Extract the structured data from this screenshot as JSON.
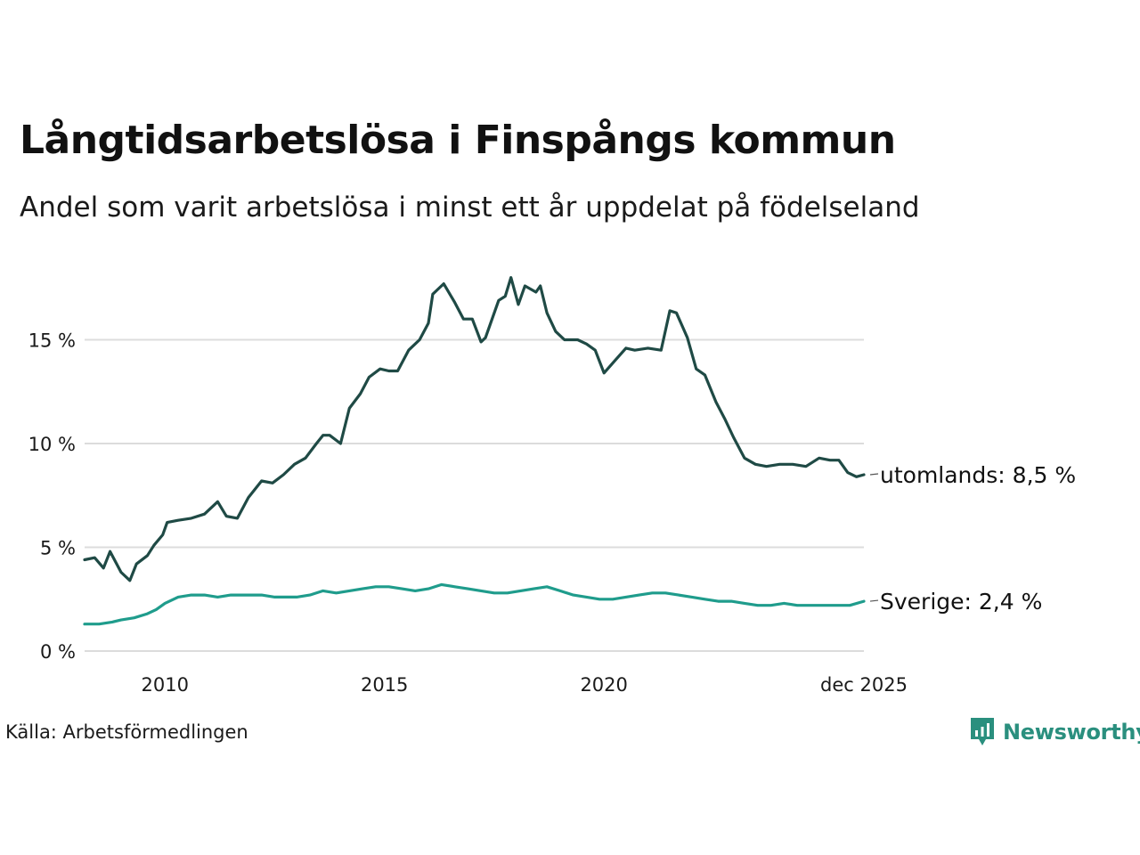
{
  "title": "Långtidsarbetslösa i Finspångs kommun",
  "subtitle": "Andel som varit arbetslösa i minst ett år uppdelat på födelseland",
  "source": "Källa: Arbetsförmedlingen",
  "brand": "Newsworthy",
  "colors": {
    "utomlands": "#1f4a45",
    "sverige": "#1f9c8c",
    "grid": "#dcdcdc",
    "brand": "#2a8f7e"
  },
  "chart_data": {
    "type": "line",
    "title": "Långtidsarbetslösa i Finspångs kommun",
    "xlabel": "",
    "ylabel": "",
    "xlim": [
      2008.17,
      2025.92
    ],
    "ylim": [
      0,
      18.5
    ],
    "grid": true,
    "x_ticks": [
      {
        "value": 2010,
        "label": "2010"
      },
      {
        "value": 2015,
        "label": "2015"
      },
      {
        "value": 2020,
        "label": "2020"
      },
      {
        "value": 2025.92,
        "label": "dec 2025"
      }
    ],
    "y_ticks": [
      {
        "value": 0,
        "label": "0 %"
      },
      {
        "value": 5,
        "label": "5 %"
      },
      {
        "value": 10,
        "label": "10 %"
      },
      {
        "value": 15,
        "label": "15 %"
      }
    ],
    "series": [
      {
        "name": "utomlands",
        "end_label": "utomlands: 8,5 %",
        "x": [
          2008.17,
          2008.4,
          2008.6,
          2008.75,
          2009.0,
          2009.2,
          2009.35,
          2009.6,
          2009.75,
          2009.95,
          2010.05,
          2010.3,
          2010.6,
          2010.9,
          2011.2,
          2011.4,
          2011.65,
          2011.9,
          2012.2,
          2012.45,
          2012.7,
          2012.95,
          2013.2,
          2013.45,
          2013.6,
          2013.75,
          2014.0,
          2014.2,
          2014.45,
          2014.65,
          2014.9,
          2015.1,
          2015.3,
          2015.55,
          2015.8,
          2016.0,
          2016.1,
          2016.2,
          2016.35,
          2016.6,
          2016.8,
          2017.0,
          2017.2,
          2017.3,
          2017.6,
          2017.75,
          2017.88,
          2018.05,
          2018.2,
          2018.45,
          2018.55,
          2018.7,
          2018.9,
          2019.1,
          2019.4,
          2019.6,
          2019.8,
          2020.0,
          2020.25,
          2020.5,
          2020.7,
          2021.0,
          2021.3,
          2021.5,
          2021.65,
          2021.9,
          2022.1,
          2022.3,
          2022.55,
          2022.75,
          2022.95,
          2023.2,
          2023.45,
          2023.7,
          2024.0,
          2024.3,
          2024.6,
          2024.9,
          2025.15,
          2025.35,
          2025.55,
          2025.75,
          2025.92
        ],
        "values": [
          4.4,
          4.5,
          4.0,
          4.8,
          3.8,
          3.4,
          4.2,
          4.6,
          5.1,
          5.6,
          6.2,
          6.3,
          6.4,
          6.6,
          7.2,
          6.5,
          6.4,
          7.4,
          8.2,
          8.1,
          8.5,
          9.0,
          9.3,
          10.0,
          10.4,
          10.4,
          10.0,
          11.7,
          12.4,
          13.2,
          13.6,
          13.5,
          13.5,
          14.5,
          15.0,
          15.8,
          17.2,
          17.4,
          17.7,
          16.8,
          16.0,
          16.0,
          14.9,
          15.1,
          16.9,
          17.1,
          18.0,
          16.7,
          17.6,
          17.3,
          17.6,
          16.3,
          15.4,
          15.0,
          15.0,
          14.8,
          14.5,
          13.4,
          14.0,
          14.6,
          14.5,
          14.6,
          14.5,
          16.4,
          16.3,
          15.1,
          13.6,
          13.3,
          12.0,
          11.2,
          10.3,
          9.3,
          9.0,
          8.9,
          9.0,
          9.0,
          8.9,
          9.3,
          9.2,
          9.2,
          8.6,
          8.4,
          8.5
        ]
      },
      {
        "name": "Sverige",
        "end_label": "Sverige: 2,4 %",
        "x": [
          2008.17,
          2008.5,
          2008.8,
          2009.0,
          2009.3,
          2009.6,
          2009.8,
          2010.0,
          2010.3,
          2010.6,
          2010.9,
          2011.2,
          2011.5,
          2011.8,
          2012.2,
          2012.5,
          2012.8,
          2013.0,
          2013.3,
          2013.6,
          2013.9,
          2014.2,
          2014.5,
          2014.8,
          2015.1,
          2015.4,
          2015.7,
          2016.0,
          2016.3,
          2016.6,
          2016.9,
          2017.2,
          2017.5,
          2017.8,
          2018.1,
          2018.4,
          2018.7,
          2019.0,
          2019.3,
          2019.6,
          2019.9,
          2020.2,
          2020.5,
          2020.8,
          2021.1,
          2021.4,
          2021.7,
          2022.0,
          2022.3,
          2022.6,
          2022.9,
          2023.2,
          2023.5,
          2023.8,
          2024.1,
          2024.4,
          2024.7,
          2025.0,
          2025.3,
          2025.6,
          2025.92
        ],
        "values": [
          1.3,
          1.3,
          1.4,
          1.5,
          1.6,
          1.8,
          2.0,
          2.3,
          2.6,
          2.7,
          2.7,
          2.6,
          2.7,
          2.7,
          2.7,
          2.6,
          2.6,
          2.6,
          2.7,
          2.9,
          2.8,
          2.9,
          3.0,
          3.1,
          3.1,
          3.0,
          2.9,
          3.0,
          3.2,
          3.1,
          3.0,
          2.9,
          2.8,
          2.8,
          2.9,
          3.0,
          3.1,
          2.9,
          2.7,
          2.6,
          2.5,
          2.5,
          2.6,
          2.7,
          2.8,
          2.8,
          2.7,
          2.6,
          2.5,
          2.4,
          2.4,
          2.3,
          2.2,
          2.2,
          2.3,
          2.2,
          2.2,
          2.2,
          2.2,
          2.2,
          2.4
        ]
      }
    ]
  }
}
